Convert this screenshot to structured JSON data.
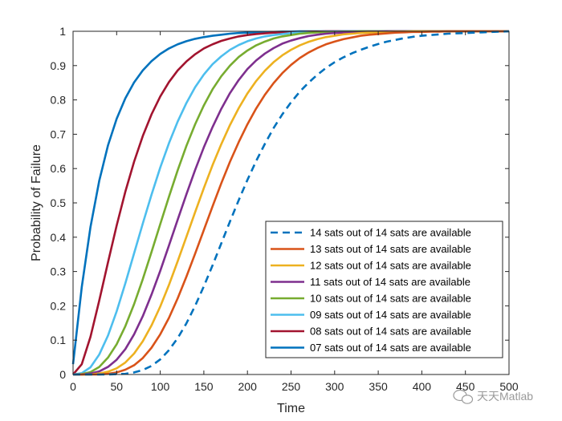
{
  "chart_data": {
    "type": "line",
    "title": "",
    "xlabel": "Time",
    "ylabel": "Probability of Failure",
    "xlim": [
      0,
      500
    ],
    "ylim": [
      0,
      1
    ],
    "x_ticks": [
      "0",
      "50",
      "100",
      "150",
      "200",
      "250",
      "300",
      "350",
      "400",
      "450",
      "500"
    ],
    "y_ticks": [
      "0",
      "0.1",
      "0.2",
      "0.3",
      "0.4",
      "0.5",
      "0.6",
      "0.7",
      "0.8",
      "0.9",
      "1"
    ],
    "grid": false,
    "legend_position": "bottom-right",
    "x": [
      0,
      10,
      20,
      30,
      40,
      50,
      60,
      70,
      80,
      90,
      100,
      110,
      120,
      130,
      140,
      150,
      160,
      170,
      180,
      190,
      200,
      210,
      220,
      230,
      240,
      250,
      260,
      270,
      280,
      290,
      300,
      310,
      320,
      330,
      340,
      350,
      360,
      370,
      380,
      390,
      400,
      410,
      420,
      430,
      440,
      450,
      460,
      470,
      480,
      490,
      500
    ],
    "series": [
      {
        "name": "14 sats out of 14 sats are available",
        "color": "#0072BD",
        "dashed": true,
        "values": [
          0.0,
          0.0,
          0.0,
          0.0,
          0.0,
          0.001,
          0.002,
          0.006,
          0.013,
          0.025,
          0.044,
          0.071,
          0.106,
          0.149,
          0.2,
          0.257,
          0.318,
          0.382,
          0.446,
          0.508,
          0.567,
          0.622,
          0.672,
          0.718,
          0.758,
          0.793,
          0.824,
          0.85,
          0.873,
          0.893,
          0.91,
          0.924,
          0.936,
          0.946,
          0.955,
          0.963,
          0.97,
          0.975,
          0.98,
          0.984,
          0.987,
          0.989,
          0.991,
          0.993,
          0.994,
          0.995,
          0.996,
          0.997,
          0.998,
          0.999,
          1.0
        ]
      },
      {
        "name": "13 sats out of 14 sats are available",
        "color": "#D95319",
        "dashed": false,
        "values": [
          0.0,
          0.0,
          0.0,
          0.0,
          0.002,
          0.006,
          0.014,
          0.027,
          0.048,
          0.078,
          0.117,
          0.165,
          0.222,
          0.285,
          0.352,
          0.421,
          0.49,
          0.557,
          0.62,
          0.677,
          0.729,
          0.775,
          0.815,
          0.849,
          0.878,
          0.902,
          0.922,
          0.938,
          0.951,
          0.962,
          0.97,
          0.977,
          0.982,
          0.987,
          0.99,
          0.992,
          0.994,
          0.996,
          0.997,
          0.998,
          0.998,
          0.999,
          0.999,
          1.0,
          1.0,
          1.0,
          1.0,
          1.0,
          1.0,
          1.0,
          1.0
        ]
      },
      {
        "name": "12 sats out of 14 sats are available",
        "color": "#EDB120",
        "dashed": false,
        "values": [
          0.0,
          0.0,
          0.0,
          0.003,
          0.008,
          0.018,
          0.035,
          0.061,
          0.097,
          0.143,
          0.198,
          0.261,
          0.33,
          0.401,
          0.473,
          0.543,
          0.61,
          0.671,
          0.727,
          0.776,
          0.819,
          0.855,
          0.885,
          0.91,
          0.93,
          0.946,
          0.959,
          0.969,
          0.977,
          0.983,
          0.987,
          0.991,
          0.993,
          0.995,
          0.996,
          0.997,
          0.998,
          0.999,
          0.999,
          1.0,
          1.0,
          1.0,
          1.0,
          1.0,
          1.0,
          1.0,
          1.0,
          1.0,
          1.0,
          1.0,
          1.0
        ]
      },
      {
        "name": "11 sats out of 14 sats are available",
        "color": "#7E2F8E",
        "dashed": false,
        "values": [
          0.0,
          0.0,
          0.003,
          0.009,
          0.022,
          0.043,
          0.074,
          0.117,
          0.17,
          0.233,
          0.302,
          0.376,
          0.451,
          0.525,
          0.596,
          0.662,
          0.721,
          0.774,
          0.82,
          0.858,
          0.89,
          0.915,
          0.935,
          0.951,
          0.964,
          0.973,
          0.98,
          0.986,
          0.99,
          0.993,
          0.995,
          0.996,
          0.997,
          0.998,
          0.999,
          0.999,
          1.0,
          1.0,
          1.0,
          1.0,
          1.0,
          1.0,
          1.0,
          1.0,
          1.0,
          1.0,
          1.0,
          1.0,
          1.0,
          1.0,
          1.0
        ]
      },
      {
        "name": "10 sats out of 14 sats are available",
        "color": "#77AC30",
        "dashed": false,
        "values": [
          0.0,
          0.001,
          0.007,
          0.022,
          0.049,
          0.088,
          0.141,
          0.205,
          0.278,
          0.357,
          0.438,
          0.518,
          0.595,
          0.666,
          0.729,
          0.784,
          0.831,
          0.869,
          0.9,
          0.925,
          0.944,
          0.959,
          0.97,
          0.979,
          0.985,
          0.989,
          0.993,
          0.995,
          0.997,
          0.998,
          0.998,
          0.999,
          0.999,
          1.0,
          1.0,
          1.0,
          1.0,
          1.0,
          1.0,
          1.0,
          1.0,
          1.0,
          1.0,
          1.0,
          1.0,
          1.0,
          1.0,
          1.0,
          1.0,
          1.0,
          1.0
        ]
      },
      {
        "name": "09 sats out of 14 sats are available",
        "color": "#4DBEEE",
        "dashed": false,
        "values": [
          0.0,
          0.004,
          0.021,
          0.058,
          0.113,
          0.184,
          0.266,
          0.353,
          0.44,
          0.524,
          0.603,
          0.674,
          0.737,
          0.791,
          0.837,
          0.874,
          0.904,
          0.927,
          0.946,
          0.96,
          0.971,
          0.979,
          0.985,
          0.989,
          0.992,
          0.995,
          0.996,
          0.997,
          0.998,
          0.999,
          0.999,
          1.0,
          1.0,
          1.0,
          1.0,
          1.0,
          1.0,
          1.0,
          1.0,
          1.0,
          1.0,
          1.0,
          1.0,
          1.0,
          1.0,
          1.0,
          1.0,
          1.0,
          1.0,
          1.0,
          1.0
        ]
      },
      {
        "name": "08 sats out of 14 sats are available",
        "color": "#A2142F",
        "dashed": false,
        "values": [
          0.0,
          0.03,
          0.11,
          0.215,
          0.326,
          0.434,
          0.533,
          0.62,
          0.695,
          0.758,
          0.81,
          0.852,
          0.886,
          0.912,
          0.933,
          0.95,
          0.962,
          0.972,
          0.979,
          0.985,
          0.989,
          0.992,
          0.994,
          0.996,
          0.997,
          0.998,
          0.998,
          0.999,
          0.999,
          1.0,
          1.0,
          1.0,
          1.0,
          1.0,
          1.0,
          1.0,
          1.0,
          1.0,
          1.0,
          1.0,
          1.0,
          1.0,
          1.0,
          1.0,
          1.0,
          1.0,
          1.0,
          1.0,
          1.0,
          1.0,
          1.0
        ]
      },
      {
        "name": "07 sats out of 14 sats are available",
        "color": "#0072BD",
        "dashed": false,
        "values": [
          0.03,
          0.255,
          0.43,
          0.564,
          0.667,
          0.745,
          0.805,
          0.851,
          0.886,
          0.913,
          0.934,
          0.95,
          0.962,
          0.971,
          0.978,
          0.983,
          0.987,
          0.99,
          0.993,
          0.995,
          0.996,
          0.997,
          0.998,
          0.998,
          0.999,
          0.999,
          1.0,
          1.0,
          1.0,
          1.0,
          1.0,
          1.0,
          1.0,
          1.0,
          1.0,
          1.0,
          1.0,
          1.0,
          1.0,
          1.0,
          1.0,
          1.0,
          1.0,
          1.0,
          1.0,
          1.0,
          1.0,
          1.0,
          1.0,
          1.0,
          1.0
        ]
      }
    ]
  },
  "watermark": {
    "text": "天天Matlab",
    "icon": "wechat-icon"
  }
}
